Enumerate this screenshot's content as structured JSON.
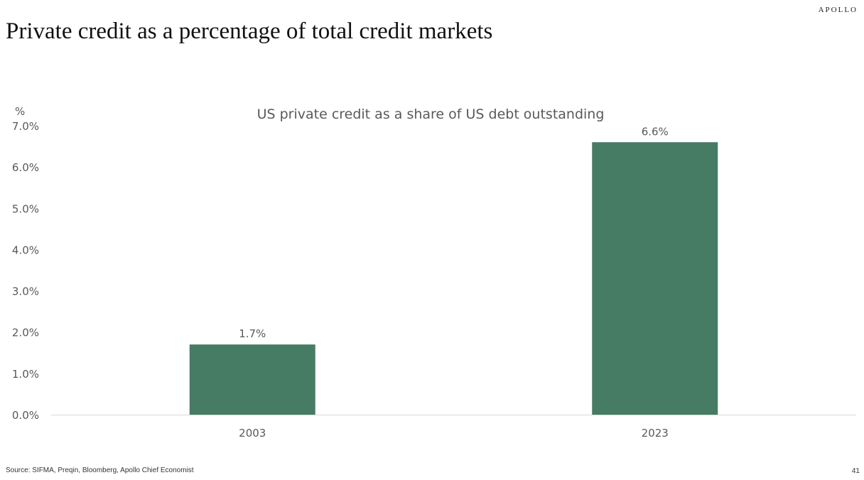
{
  "brand": "APOLLO",
  "slide_title": "Private credit as a percentage of total credit markets",
  "footer": {
    "source": "Source: SIFMA, Preqin, Bloomberg, Apollo Chief Economist",
    "page_number": "41"
  },
  "colors": {
    "bar": "#467B64",
    "axis_text": "#595959",
    "axis_line": "#D9D9D9"
  },
  "chart_data": {
    "type": "bar",
    "title": "US private credit as a share of US debt outstanding",
    "ylabel": "%",
    "xlabel": "",
    "categories": [
      "2003",
      "2023"
    ],
    "values": [
      1.7,
      6.6
    ],
    "value_labels": [
      "1.7%",
      "6.6%"
    ],
    "ylim": [
      0,
      7
    ],
    "yticks": [
      0,
      1,
      2,
      3,
      4,
      5,
      6,
      7
    ],
    "ytick_labels": [
      "0.0%",
      "1.0%",
      "2.0%",
      "3.0%",
      "4.0%",
      "5.0%",
      "6.0%",
      "7.0%"
    ],
    "grid": false,
    "legend": "none"
  }
}
